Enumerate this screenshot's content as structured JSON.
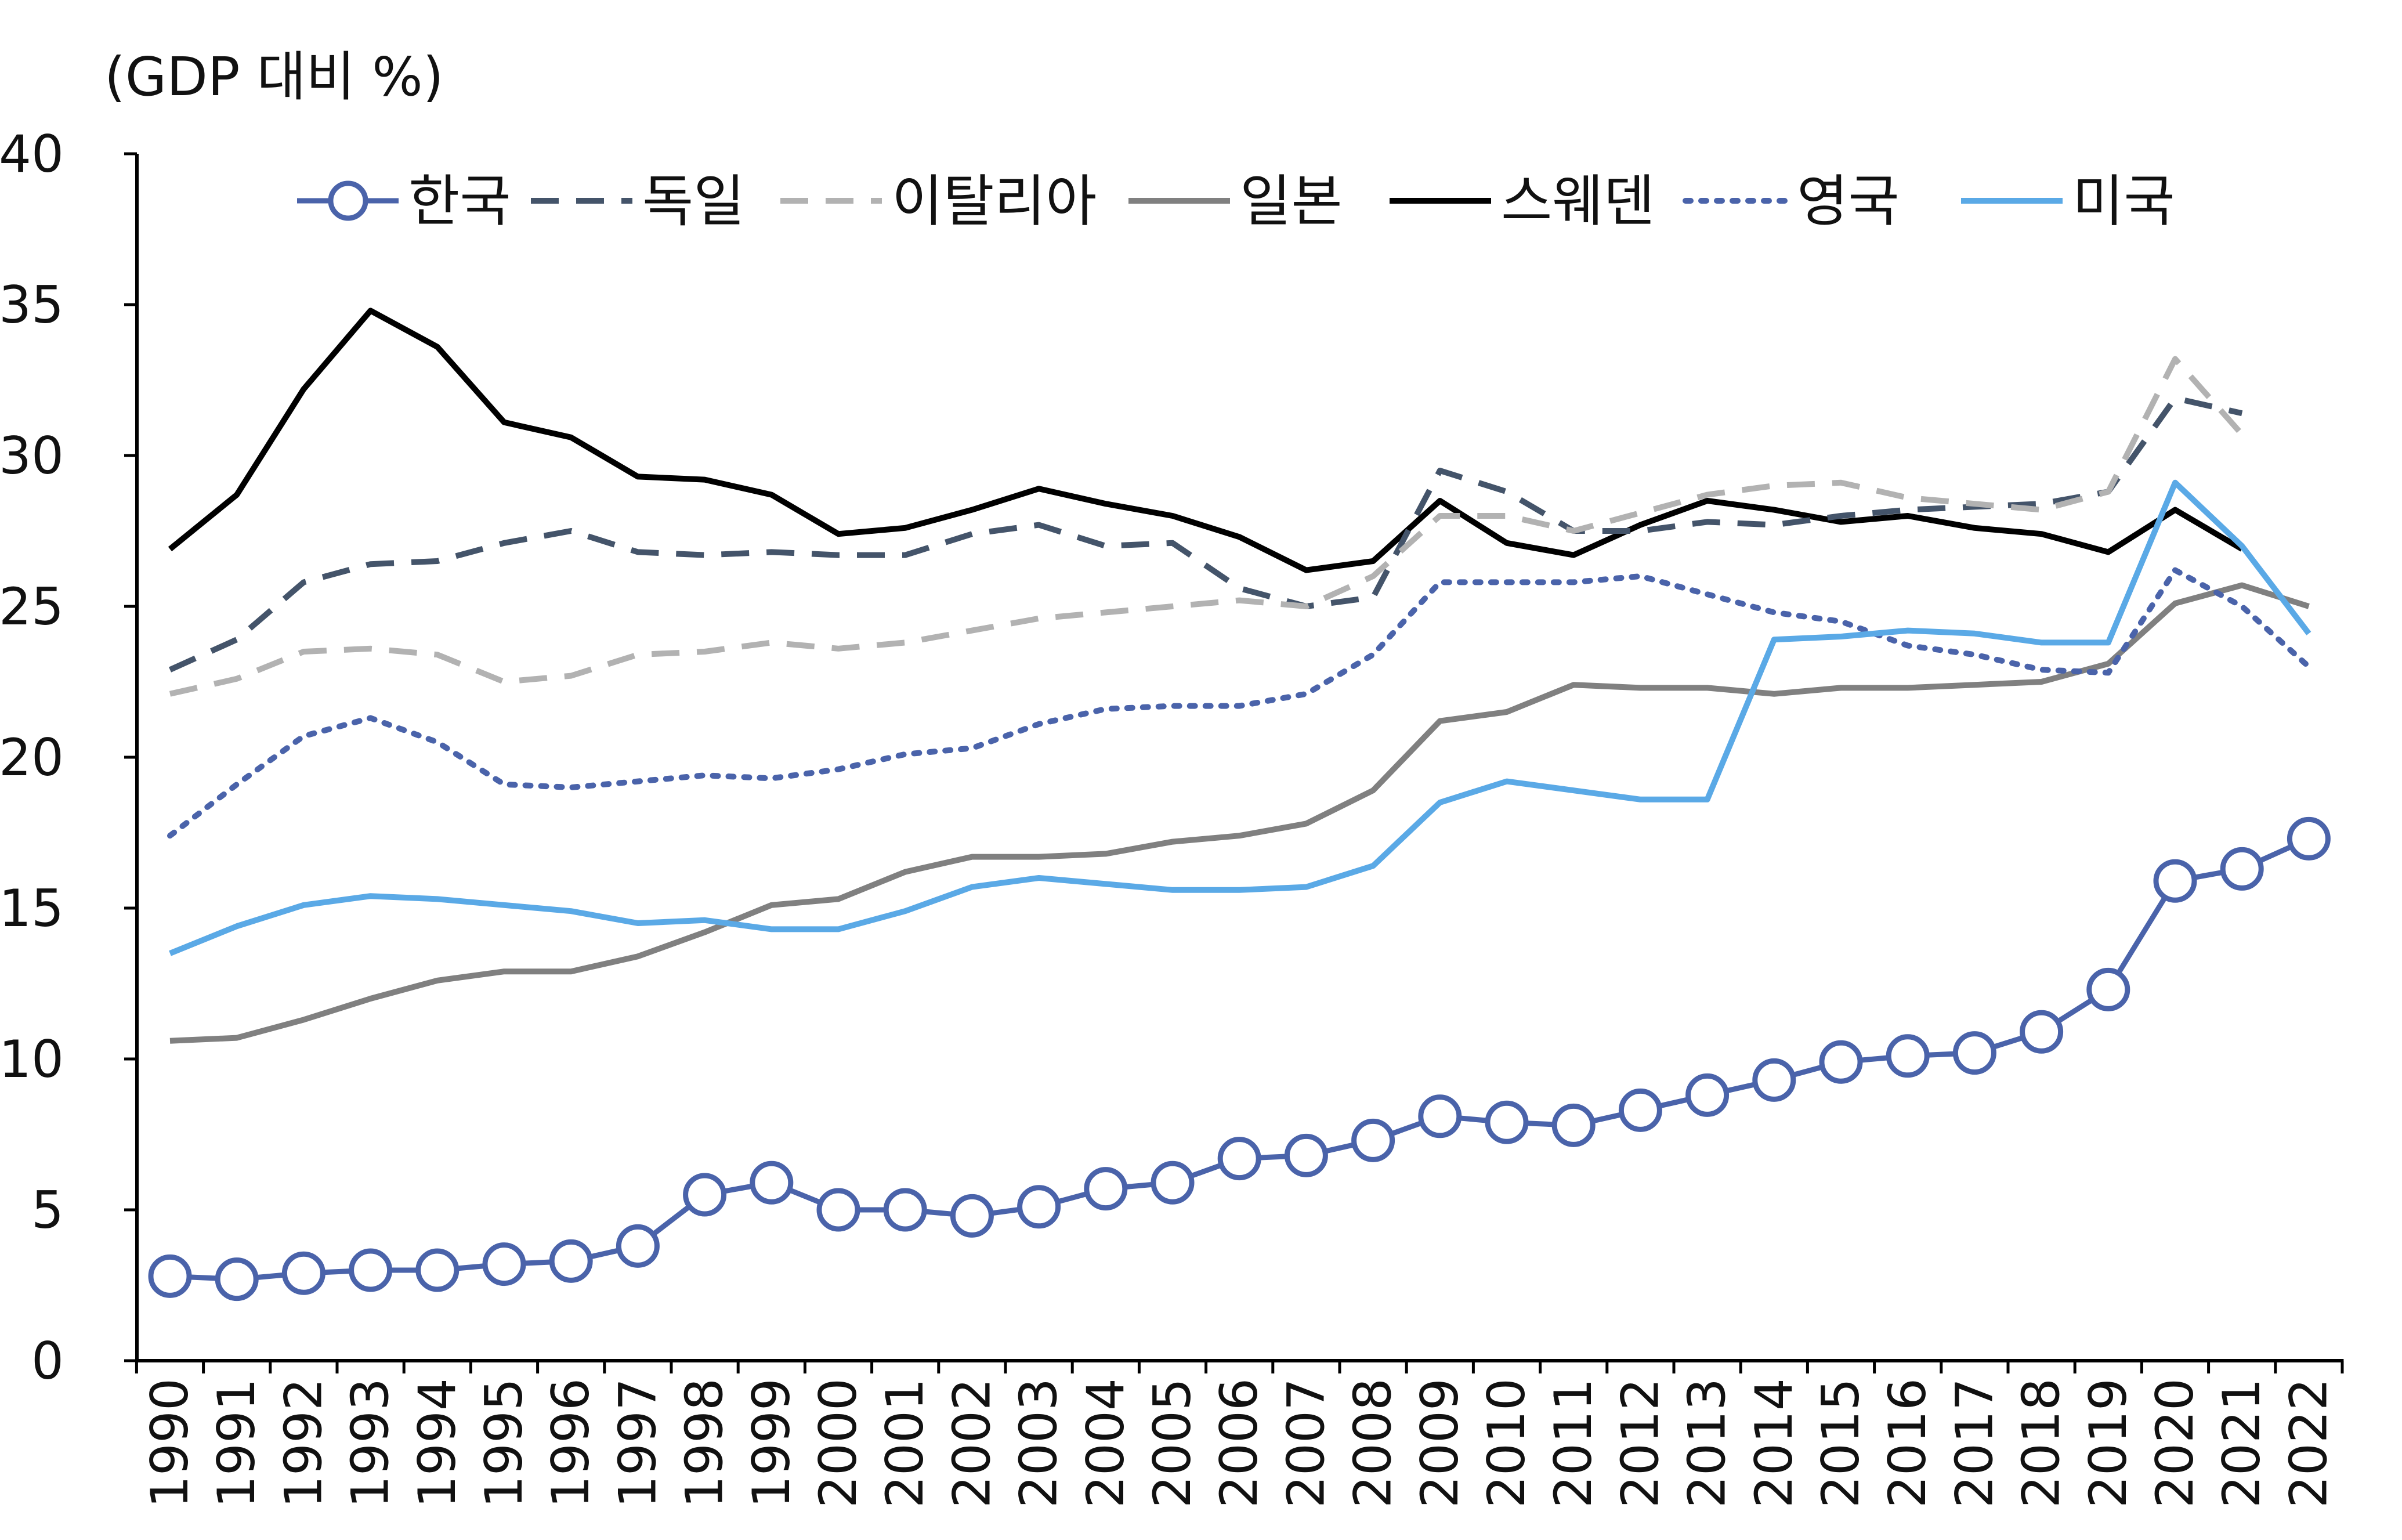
{
  "chart_data": {
    "type": "line",
    "title": "",
    "unit_label": "(GDP 대비 %)",
    "xlabel": "",
    "ylabel": "",
    "ylim": [
      0,
      40
    ],
    "yticks": [
      "0",
      "5",
      "10",
      "15",
      "20",
      "25",
      "30",
      "35",
      "40"
    ],
    "grid": false,
    "legend_position": "top",
    "categories": [
      "1990",
      "1991",
      "1992",
      "1993",
      "1994",
      "1995",
      "1996",
      "1997",
      "1998",
      "1999",
      "2000",
      "2001",
      "2002",
      "2003",
      "2004",
      "2005",
      "2006",
      "2007",
      "2008",
      "2009",
      "2010",
      "2011",
      "2012",
      "2013",
      "2014",
      "2015",
      "2016",
      "2017",
      "2018",
      "2019",
      "2020",
      "2021",
      "2022"
    ],
    "series": [
      {
        "name": "한국",
        "color": "#4a63aa",
        "style": "circle-line",
        "values": [
          2.8,
          2.7,
          2.9,
          3.0,
          3.0,
          3.2,
          3.3,
          3.8,
          5.5,
          5.9,
          5.0,
          5.0,
          4.8,
          5.1,
          5.7,
          5.9,
          6.7,
          6.8,
          7.3,
          8.1,
          7.9,
          7.8,
          8.3,
          8.8,
          9.3,
          9.9,
          10.1,
          10.2,
          10.9,
          12.3,
          15.9,
          16.3,
          17.3
        ]
      },
      {
        "name": "독일",
        "color": "#44546a",
        "style": "dash",
        "values": [
          22.9,
          23.9,
          25.8,
          26.4,
          26.5,
          27.1,
          27.5,
          26.8,
          26.7,
          26.8,
          26.7,
          26.7,
          27.4,
          27.7,
          27.0,
          27.1,
          25.6,
          25.0,
          25.3,
          29.5,
          28.8,
          27.5,
          27.5,
          27.8,
          27.7,
          28.0,
          28.2,
          28.3,
          28.4,
          28.8,
          31.9,
          31.4,
          null
        ]
      },
      {
        "name": "이탈리아",
        "color": "#b2b2b2",
        "style": "dash",
        "values": [
          22.1,
          22.6,
          23.5,
          23.6,
          23.4,
          22.5,
          22.7,
          23.4,
          23.5,
          23.8,
          23.6,
          23.8,
          24.2,
          24.6,
          24.8,
          25.0,
          25.2,
          25.0,
          26.0,
          28.0,
          28.0,
          27.5,
          28.1,
          28.7,
          29.0,
          29.1,
          28.6,
          28.4,
          28.2,
          28.8,
          33.2,
          30.7,
          null
        ]
      },
      {
        "name": "일본",
        "color": "#808080",
        "style": "solid",
        "values": [
          10.6,
          10.7,
          11.3,
          12.0,
          12.6,
          12.9,
          12.9,
          13.4,
          14.2,
          15.1,
          15.3,
          16.2,
          16.7,
          16.7,
          16.8,
          17.2,
          17.4,
          17.8,
          18.9,
          21.2,
          21.5,
          22.4,
          22.3,
          22.3,
          22.1,
          22.3,
          22.3,
          22.4,
          22.5,
          23.1,
          25.1,
          25.7,
          25.0
        ]
      },
      {
        "name": "스웨덴",
        "color": "#000000",
        "style": "solid",
        "values": [
          26.9,
          28.7,
          32.2,
          34.8,
          33.6,
          31.1,
          30.6,
          29.3,
          29.2,
          28.7,
          27.4,
          27.6,
          28.2,
          28.9,
          28.4,
          28.0,
          27.3,
          26.2,
          26.5,
          28.5,
          27.1,
          26.7,
          27.7,
          28.5,
          28.2,
          27.8,
          28.0,
          27.6,
          27.4,
          26.8,
          28.2,
          26.9,
          null
        ]
      },
      {
        "name": "영국",
        "color": "#4a63aa",
        "style": "dot",
        "values": [
          17.4,
          19.1,
          20.7,
          21.3,
          20.5,
          19.1,
          19.0,
          19.2,
          19.4,
          19.3,
          19.6,
          20.1,
          20.3,
          21.1,
          21.6,
          21.7,
          21.7,
          22.1,
          23.4,
          25.8,
          25.8,
          25.8,
          26.0,
          25.4,
          24.8,
          24.5,
          23.7,
          23.4,
          22.9,
          22.8,
          26.2,
          25.0,
          23.0
        ]
      },
      {
        "name": "미국",
        "color": "#5aa9e6",
        "style": "solid",
        "values": [
          13.5,
          14.4,
          15.1,
          15.4,
          15.3,
          15.1,
          14.9,
          14.5,
          14.6,
          14.3,
          14.3,
          14.9,
          15.7,
          16.0,
          15.8,
          15.6,
          15.6,
          15.7,
          16.4,
          18.5,
          19.2,
          18.9,
          18.6,
          18.6,
          23.9,
          24.0,
          24.2,
          24.1,
          23.8,
          23.8,
          29.1,
          27.0,
          24.1
        ]
      }
    ]
  }
}
